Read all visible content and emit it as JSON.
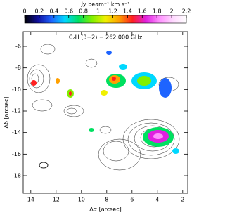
{
  "chart_data": {
    "type": "image",
    "title": "C₂H (3−2) − 262.000 GHz",
    "colorbar_label": "Jy beam⁻¹ km s⁻¹",
    "colorbar_lim": [
      0,
      2.2
    ],
    "colorbar_ticks": [
      0,
      0.2,
      0.4,
      0.6,
      0.8,
      1,
      1.2,
      1.4,
      1.6,
      1.8,
      2,
      2.2
    ],
    "colorbar_colors": [
      "#000000",
      "#1010a0",
      "#1e64ff",
      "#00d8ff",
      "#00e060",
      "#80f000",
      "#f0f000",
      "#ffa000",
      "#ff2020",
      "#e020e0",
      "#ff90ff",
      "#ffd8ff",
      "#ffffff"
    ],
    "x_label": "Δα [arcsec]",
    "y_label": "Δδ [arcsec]",
    "xlim": [
      14.6,
      1.6
    ],
    "xticks": [
      14,
      12,
      10,
      8,
      6,
      4,
      2
    ],
    "ylim": [
      -4.63,
      -19.63
    ],
    "yticks": [
      -6,
      -8,
      -10,
      -12,
      -14,
      -16,
      -18
    ]
  }
}
